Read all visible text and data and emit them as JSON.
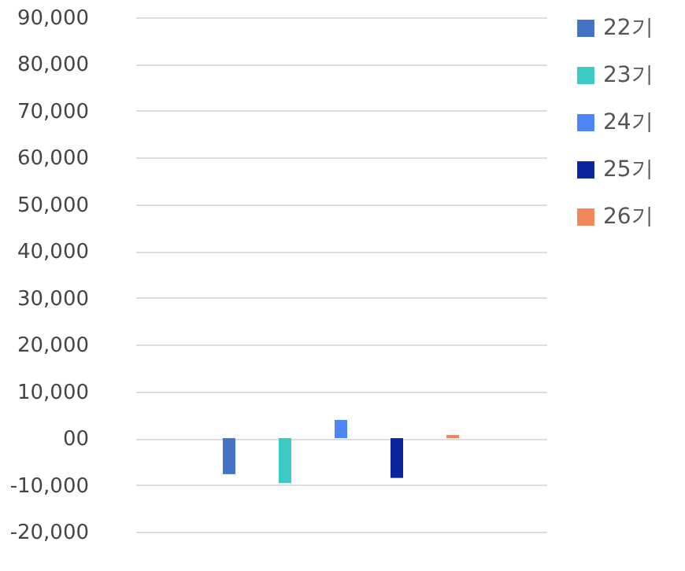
{
  "chart_data": {
    "type": "bar",
    "categories": [
      null
    ],
    "series": [
      {
        "name": "22기",
        "color": "#4472c4",
        "values": [
          -7700
        ]
      },
      {
        "name": "23기",
        "color": "#3bcac6",
        "values": [
          -9600
        ]
      },
      {
        "name": "24기",
        "color": "#4e86f7",
        "values": [
          3900
        ]
      },
      {
        "name": "25기",
        "color": "#0b259c",
        "values": [
          -8500
        ]
      },
      {
        "name": "26기",
        "color": "#f4875a",
        "values": [
          700
        ]
      }
    ],
    "ylim": [
      -20000,
      90000
    ],
    "yticks": [
      {
        "value": -20000,
        "label": "-20,000"
      },
      {
        "value": -10000,
        "label": "-10,000"
      },
      {
        "value": 0,
        "label": "00"
      },
      {
        "value": 10000,
        "label": "10,000"
      },
      {
        "value": 20000,
        "label": "20,000"
      },
      {
        "value": 30000,
        "label": "30,000"
      },
      {
        "value": 40000,
        "label": "40,000"
      },
      {
        "value": 50000,
        "label": "50,000"
      },
      {
        "value": 60000,
        "label": "60,000"
      },
      {
        "value": 70000,
        "label": "70,000"
      },
      {
        "value": 80000,
        "label": "80,000"
      },
      {
        "value": 90000,
        "label": "90,000"
      }
    ],
    "grid": "y",
    "legend": "right"
  }
}
